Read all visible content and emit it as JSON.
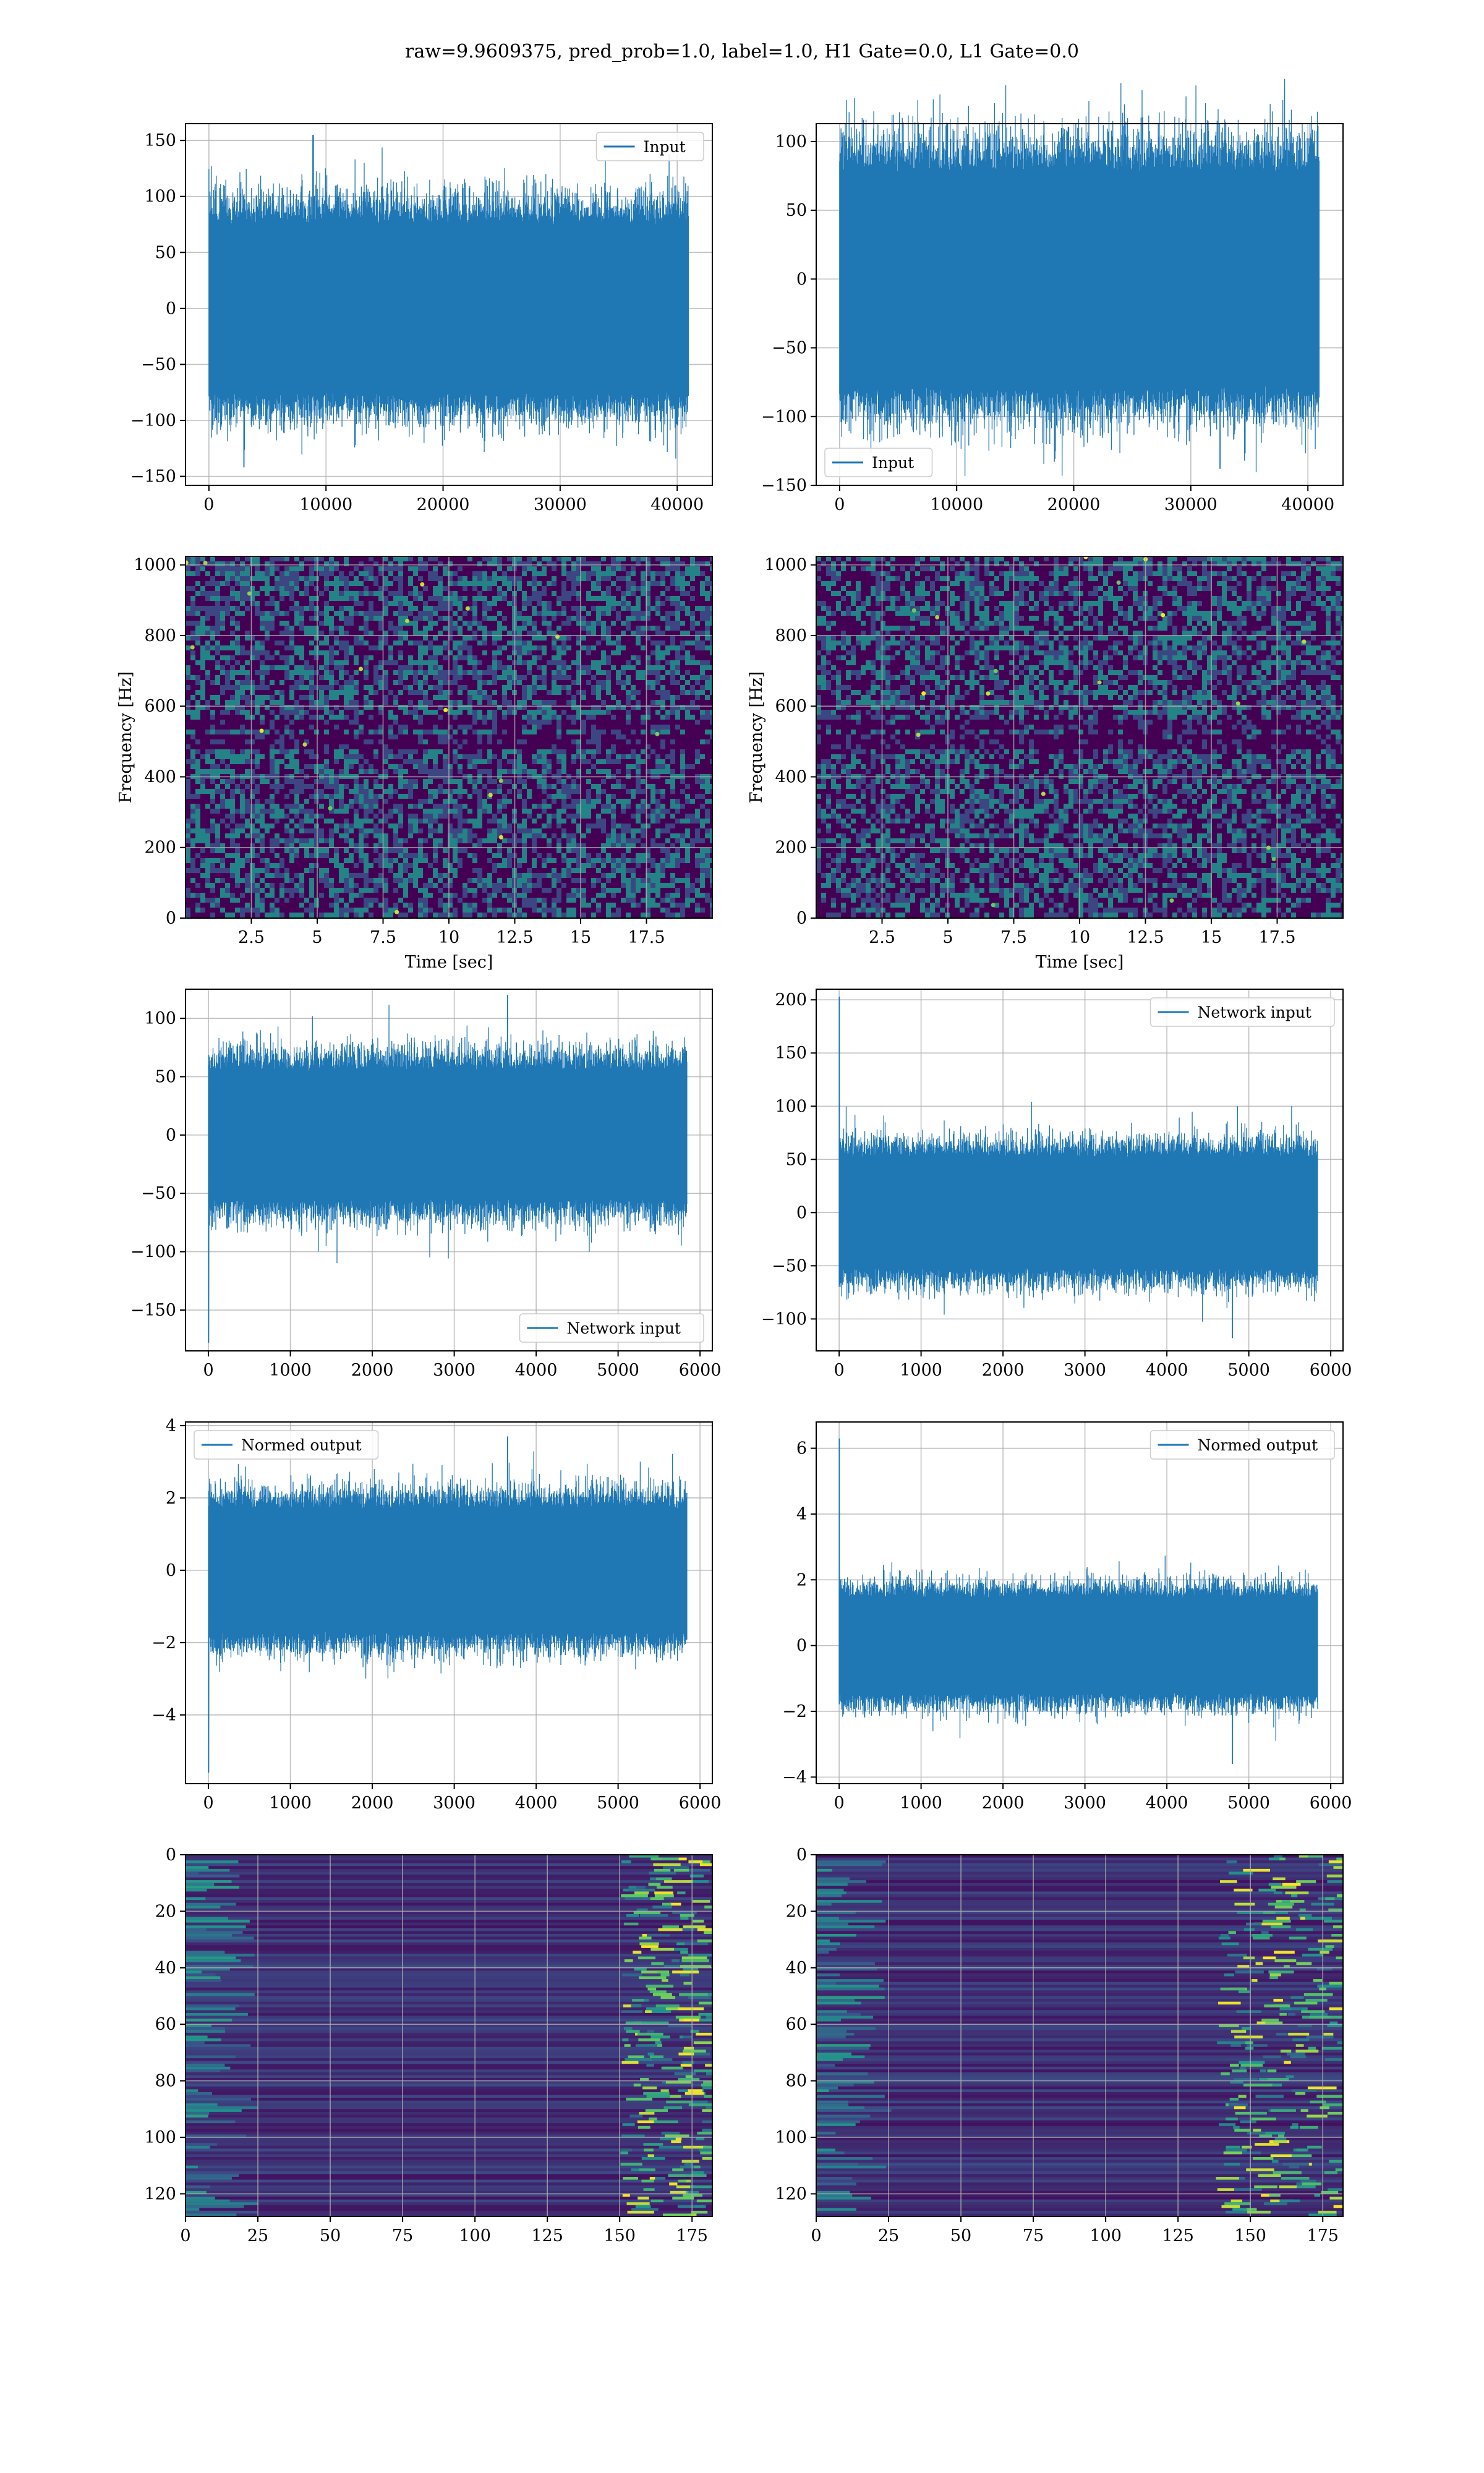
{
  "figure": {
    "suptitle": "raw=9.9609375, pred_prob=1.0, label=1.0, H1 Gate=0.0, L1 Gate=0.0",
    "colors": {
      "series": "#1f77b4",
      "grid": "#b0b0b0",
      "viridis_low": "#440154",
      "viridis_mid": "#21918c",
      "viridis_high": "#fde725"
    }
  },
  "chart_data": [
    {
      "id": "r1c1",
      "type": "line",
      "grid": true,
      "legend": [
        "Input"
      ],
      "legend_loc": "upper right",
      "xlim": [
        -2000,
        43000
      ],
      "ylim": [
        -158,
        165
      ],
      "xticks": [
        0,
        10000,
        20000,
        30000,
        40000
      ],
      "yticks": [
        -150,
        -100,
        -50,
        0,
        50,
        100,
        150
      ],
      "signal": {
        "n": 40960,
        "x_end": 40960,
        "envelope": 75,
        "peak_x": 8900,
        "peak_y": 155,
        "min_x": 3000,
        "min_y": -142
      }
    },
    {
      "id": "r1c2",
      "type": "line",
      "grid": true,
      "legend": [
        "Input"
      ],
      "legend_loc": "lower left",
      "xlim": [
        -2000,
        43000
      ],
      "ylim": [
        -150,
        113
      ],
      "xticks": [
        0,
        10000,
        20000,
        30000,
        40000
      ],
      "yticks": [
        -150,
        -100,
        -50,
        0,
        50,
        100
      ],
      "signal": {
        "n": 40960,
        "x_end": 40960,
        "envelope": 78,
        "peak_x": 9200,
        "peak_y": 113,
        "min_x": 32500,
        "min_y": -138
      }
    },
    {
      "id": "r2c1",
      "type": "heatmap",
      "grid": true,
      "colormap": "viridis",
      "xlabel": "Time [sec]",
      "ylabel": "Frequency [Hz]",
      "xlim": [
        0,
        20
      ],
      "ylim": [
        0,
        1024
      ],
      "xticks": [
        2.5,
        5.0,
        7.5,
        10.0,
        12.5,
        15.0,
        17.5
      ],
      "yticks": [
        0,
        200,
        400,
        600,
        800,
        1000
      ]
    },
    {
      "id": "r2c2",
      "type": "heatmap",
      "grid": true,
      "colormap": "viridis",
      "xlabel": "Time [sec]",
      "ylabel": "Frequency [Hz]",
      "xlim": [
        0,
        20
      ],
      "ylim": [
        0,
        1024
      ],
      "xticks": [
        2.5,
        5.0,
        7.5,
        10.0,
        12.5,
        15.0,
        17.5
      ],
      "yticks": [
        0,
        200,
        400,
        600,
        800,
        1000
      ]
    },
    {
      "id": "r3c1",
      "type": "line",
      "grid": true,
      "legend": [
        "Network input"
      ],
      "legend_loc": "lower right",
      "xlim": [
        -280,
        6150
      ],
      "ylim": [
        -185,
        125
      ],
      "xticks": [
        0,
        1000,
        2000,
        3000,
        4000,
        5000,
        6000
      ],
      "yticks": [
        -150,
        -100,
        -50,
        0,
        50,
        100
      ],
      "signal": {
        "n": 5840,
        "x_end": 5840,
        "envelope": 55,
        "peak_x": 3650,
        "peak_y": 120,
        "min_x": 0,
        "min_y": -178
      }
    },
    {
      "id": "r3c2",
      "type": "line",
      "grid": true,
      "legend": [
        "Network input"
      ],
      "legend_loc": "upper right",
      "xlim": [
        -280,
        6150
      ],
      "ylim": [
        -130,
        210
      ],
      "xticks": [
        0,
        1000,
        2000,
        3000,
        4000,
        5000,
        6000
      ],
      "yticks": [
        -100,
        -50,
        0,
        50,
        100,
        150,
        200
      ],
      "signal": {
        "n": 5840,
        "x_end": 5840,
        "envelope": 52,
        "peak_x": 0,
        "peak_y": 203,
        "min_x": 4800,
        "min_y": -118
      }
    },
    {
      "id": "r4c1",
      "type": "line",
      "grid": true,
      "legend": [
        "Normed output"
      ],
      "legend_loc": "upper left",
      "xlim": [
        -280,
        6150
      ],
      "ylim": [
        -5.9,
        4.1
      ],
      "xticks": [
        0,
        1000,
        2000,
        3000,
        4000,
        5000,
        6000
      ],
      "yticks": [
        -4,
        -2,
        0,
        2,
        4
      ],
      "signal": {
        "n": 5840,
        "x_end": 5840,
        "envelope": 1.7,
        "peak_x": 3650,
        "peak_y": 3.7,
        "min_x": 0,
        "min_y": -5.6
      }
    },
    {
      "id": "r4c2",
      "type": "line",
      "grid": true,
      "legend": [
        "Normed output"
      ],
      "legend_loc": "upper right",
      "xlim": [
        -280,
        6150
      ],
      "ylim": [
        -4.2,
        6.8
      ],
      "xticks": [
        0,
        1000,
        2000,
        3000,
        4000,
        5000,
        6000
      ],
      "yticks": [
        -4,
        -2,
        0,
        2,
        4,
        6
      ],
      "signal": {
        "n": 5840,
        "x_end": 5840,
        "envelope": 1.45,
        "peak_x": 0,
        "peak_y": 6.3,
        "min_x": 4800,
        "min_y": -3.6
      }
    },
    {
      "id": "r5c1",
      "type": "heatmap",
      "grid": true,
      "colormap": "viridis",
      "xlim": [
        0,
        182
      ],
      "ylim": [
        128,
        0
      ],
      "xticks": [
        0,
        25,
        50,
        75,
        100,
        125,
        150,
        175
      ],
      "yticks": [
        0,
        20,
        40,
        60,
        80,
        100,
        120
      ]
    },
    {
      "id": "r5c2",
      "type": "heatmap",
      "grid": true,
      "colormap": "viridis",
      "xlim": [
        0,
        182
      ],
      "ylim": [
        128,
        0
      ],
      "xticks": [
        0,
        25,
        50,
        75,
        100,
        125,
        150,
        175
      ],
      "yticks": [
        0,
        20,
        40,
        60,
        80,
        100,
        120
      ]
    }
  ]
}
